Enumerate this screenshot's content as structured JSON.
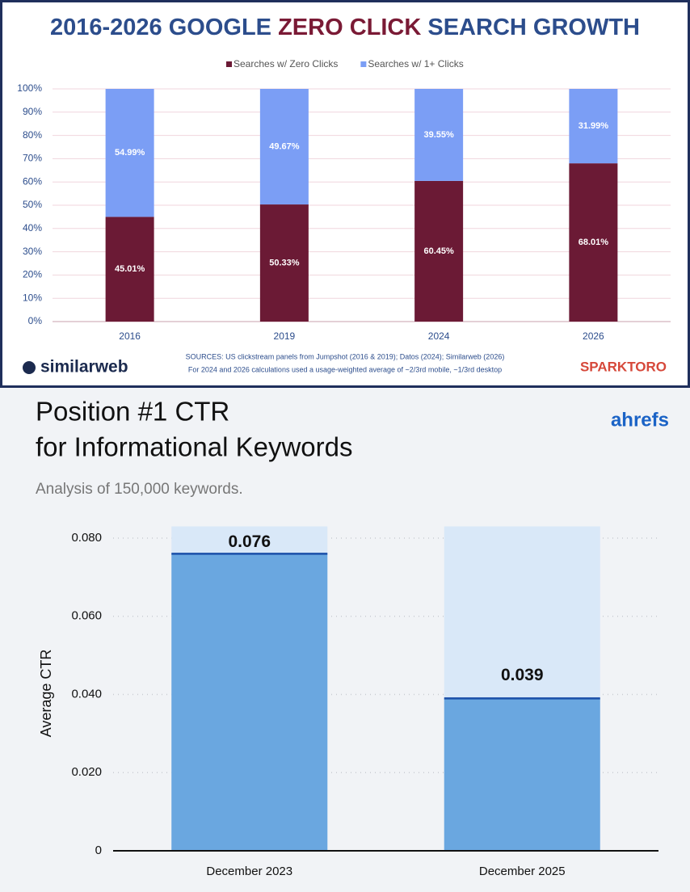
{
  "chart_data": [
    {
      "type": "stacked_bar",
      "title": [
        "2016-2026 GOOGLE ",
        "ZERO CLICK",
        " SEARCH GROWTH"
      ],
      "categories": [
        "2016",
        "2019",
        "2024",
        "2026"
      ],
      "series": [
        {
          "name": "Searches w/ Zero Clicks",
          "color": "#6b1a35",
          "values": [
            45.01,
            50.33,
            60.45,
            68.01
          ],
          "value_labels": [
            "45.01%",
            "50.33%",
            "60.45%",
            "68.01%"
          ]
        },
        {
          "name": "Searches w/ 1+ Clicks",
          "color": "#7b9ef5",
          "values": [
            54.99,
            49.67,
            39.55,
            31.99
          ],
          "value_labels": [
            "54.99%",
            "49.67%",
            "39.55%",
            "31.99%"
          ]
        }
      ],
      "ylim": [
        0,
        100
      ],
      "yticks": [
        {
          "value": 0,
          "label": "0%"
        },
        {
          "value": 10,
          "label": "10%"
        },
        {
          "value": 20,
          "label": "20%"
        },
        {
          "value": 30,
          "label": "30%"
        },
        {
          "value": 40,
          "label": "40%"
        },
        {
          "value": 50,
          "label": "50%"
        },
        {
          "value": 60,
          "label": "60%"
        },
        {
          "value": 70,
          "label": "70%"
        },
        {
          "value": 80,
          "label": "80%"
        },
        {
          "value": 90,
          "label": "90%"
        },
        {
          "value": 100,
          "label": "100%"
        }
      ],
      "grid": true,
      "legend": "top",
      "notes": [
        "SOURCES: US clickstream panels from Jumpshot (2016 & 2019); Datos (2024); Similarweb (2026)",
        "For 2024 and 2026 calculations used a usage-weighted average of ~2/3rd mobile, ~1/3rd desktop"
      ],
      "logos": [
        "similarweb",
        "SPARKTORO"
      ]
    },
    {
      "type": "bar",
      "title": [
        "Position #1 CTR",
        "for Informational Keywords"
      ],
      "subtitle": "Analysis of 150,000 keywords.",
      "brand": "ahrefs",
      "y_label": "Average CTR",
      "categories": [
        "December 2023",
        "December 2025"
      ],
      "values": [
        0.076,
        0.039
      ],
      "color": "#6aa7e0",
      "ylim": [
        0,
        0.083
      ],
      "yticks": [
        0,
        {
          "value": 0.02,
          "label": "0.020"
        },
        {
          "value": 0.04,
          "label": "0.040"
        },
        {
          "value": 0.06,
          "label": "0.060"
        },
        {
          "value": 0.08,
          "label": "0.080"
        }
      ],
      "grid": true
    }
  ]
}
